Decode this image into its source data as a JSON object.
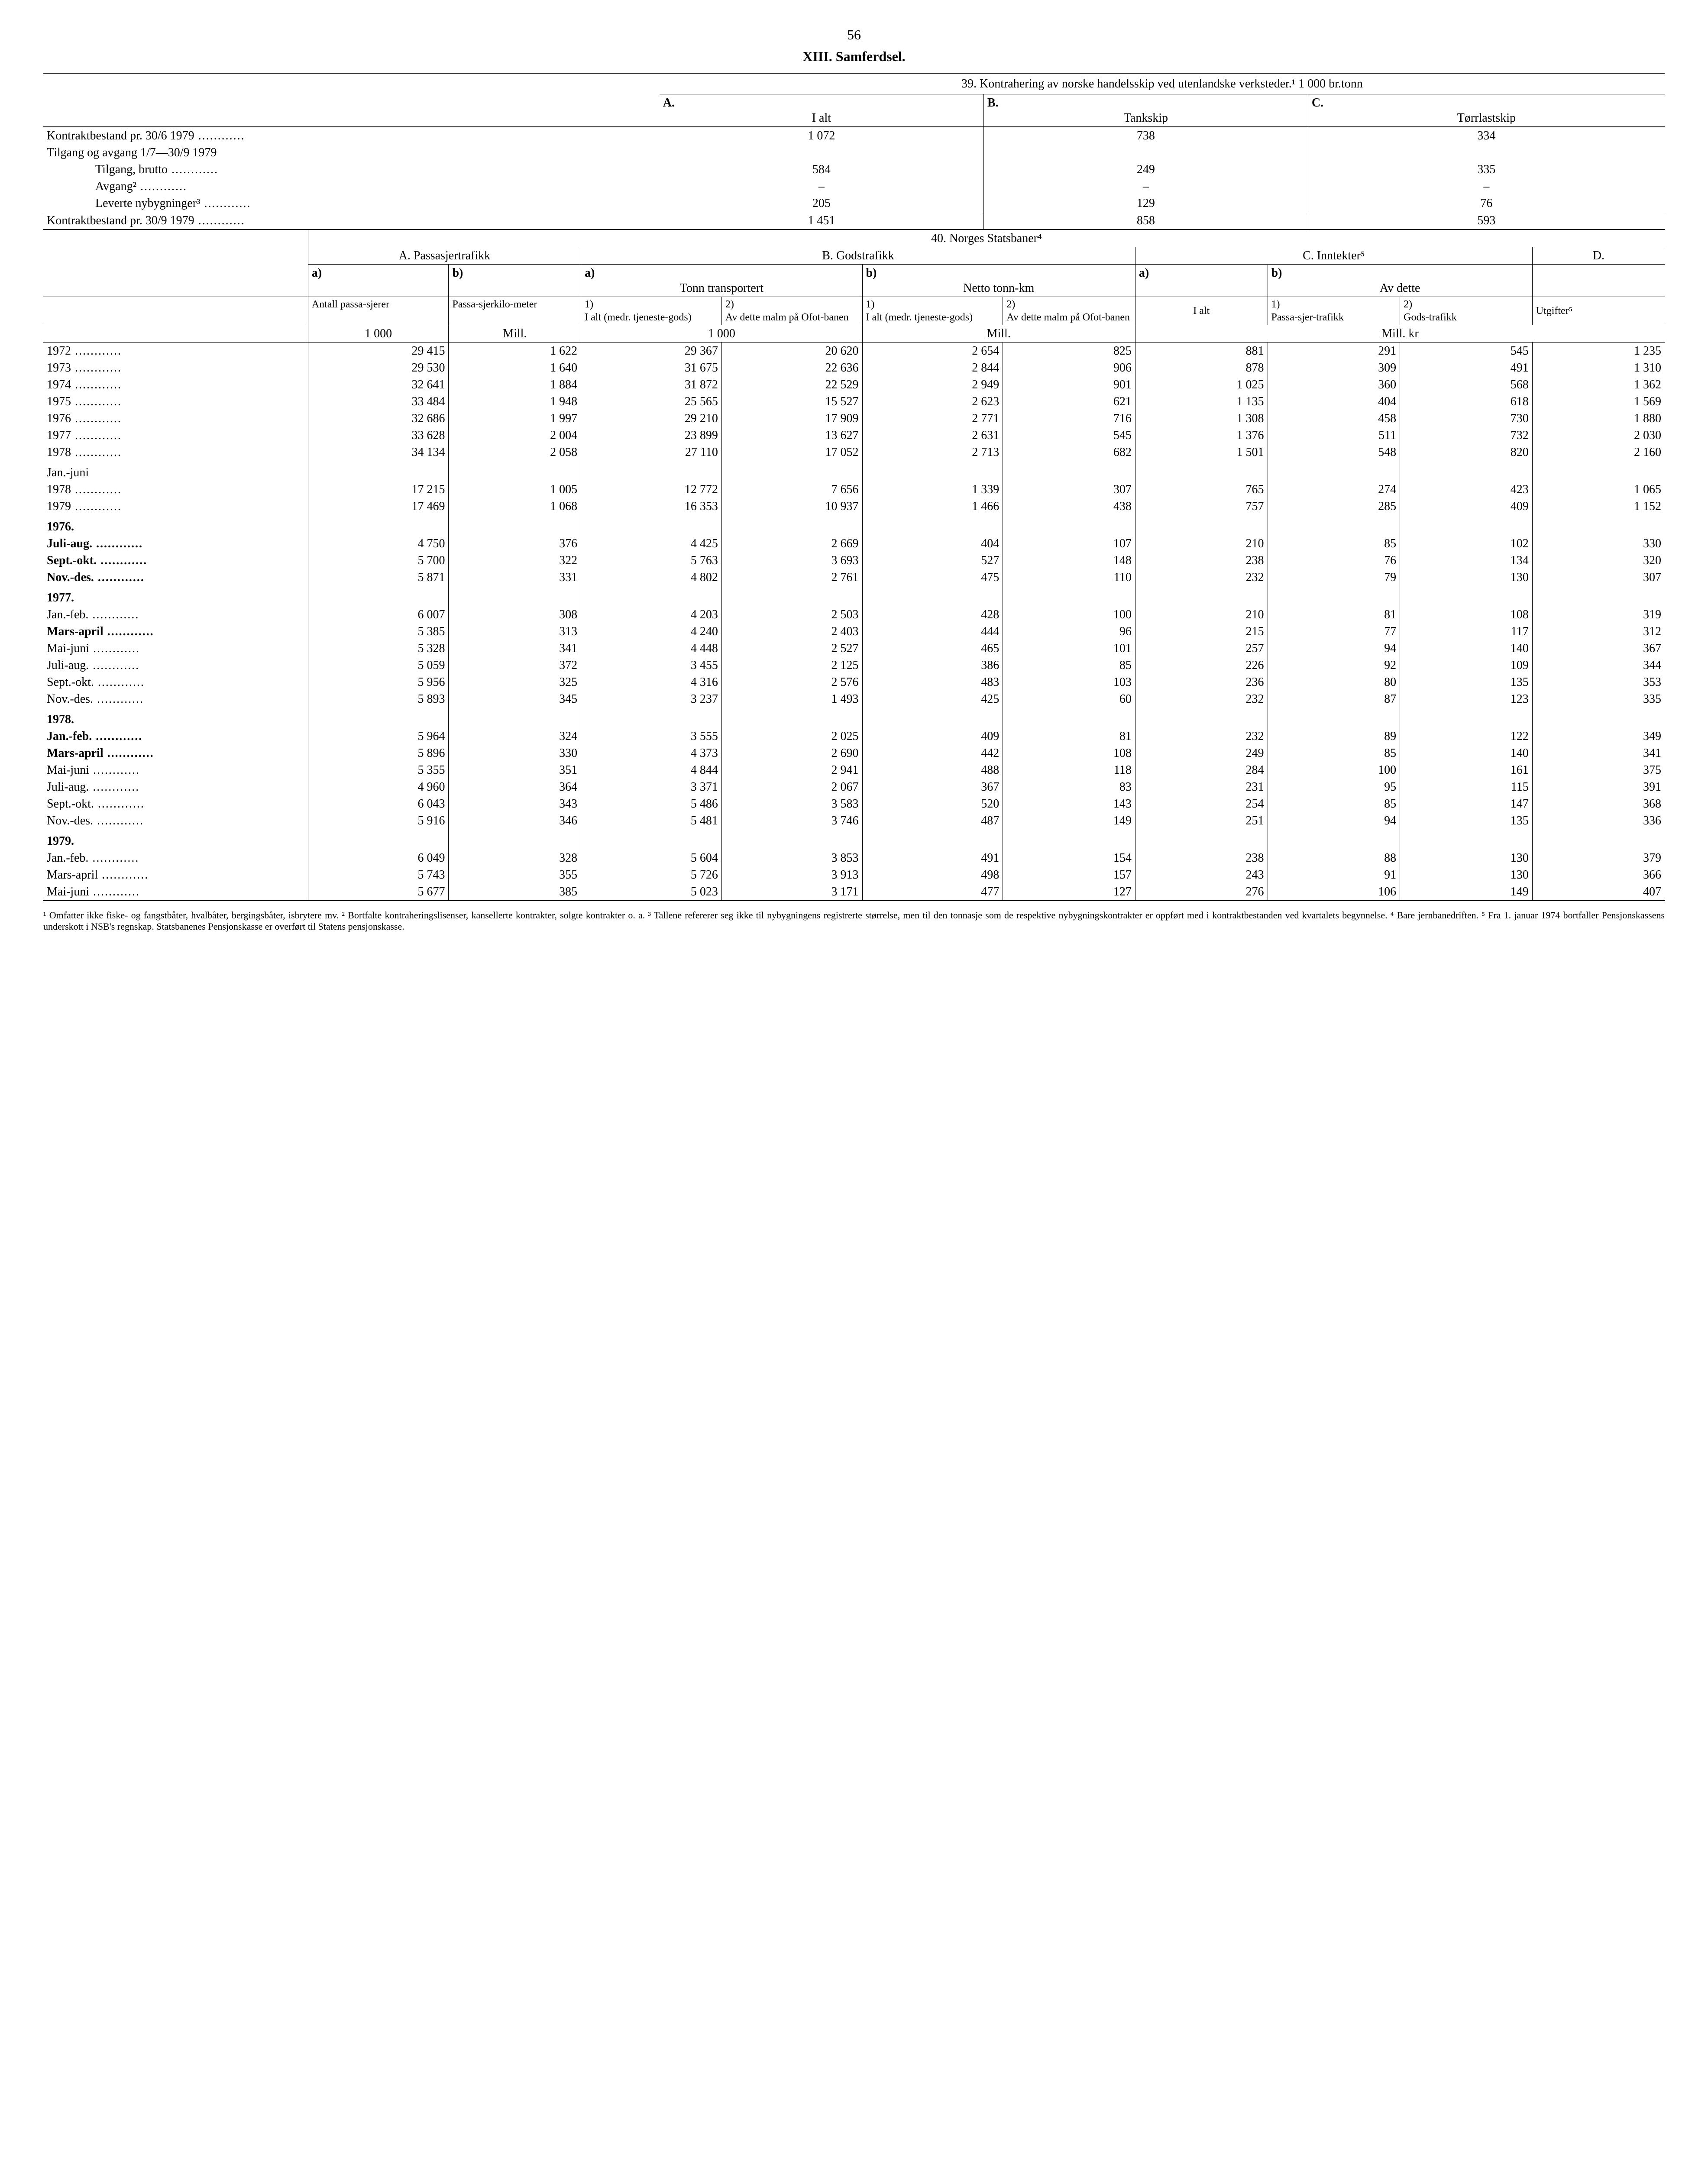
{
  "page_number": "56",
  "section_title": "XIII. Samferdsel.",
  "table39": {
    "title": "39. Kontrahering av norske handelsskip ved utenlandske verksteder.¹ 1 000 br.tonn",
    "col_labels": {
      "a": "A.",
      "a_sub": "I alt",
      "b": "B.",
      "b_sub": "Tankskip",
      "c": "C.",
      "c_sub": "Tørrlastskip"
    },
    "rows": [
      {
        "label": "Kontraktbestand pr. 30/6 1979",
        "indent": 0,
        "a": "1 072",
        "b": "738",
        "c": "334"
      },
      {
        "label": "Tilgang og avgang 1/7—30/9 1979",
        "indent": 0,
        "a": "",
        "b": "",
        "c": ""
      },
      {
        "label": "Tilgang, brutto",
        "indent": 2,
        "a": "584",
        "b": "249",
        "c": "335"
      },
      {
        "label": "Avgang²",
        "indent": 2,
        "a": "–",
        "b": "–",
        "c": "–"
      },
      {
        "label": "Leverte nybygninger³",
        "indent": 2,
        "a": "205",
        "b": "129",
        "c": "76"
      },
      {
        "label": "Kontraktbestand pr. 30/9 1979",
        "indent": 0,
        "a": "1 451",
        "b": "858",
        "c": "593"
      }
    ]
  },
  "table40": {
    "title": "40. Norges Statsbaner⁴",
    "group_headers": {
      "A": "A. Passasjertrafikk",
      "B": "B. Godstrafikk",
      "C": "C. Inntekter⁵",
      "D": "D."
    },
    "sub_headers": {
      "Aa": "a)",
      "Ab": "b)",
      "Ba": "a)",
      "Ba_sub": "Tonn transportert",
      "Bb": "b)",
      "Bb_sub": "Netto tonn-km",
      "Ca": "a)",
      "Cb": "b)",
      "Cb_sub": "Av dette"
    },
    "leaf_headers": {
      "Aa": "Antall passa-sjerer",
      "Ab": "Passa-sjerkilo-meter",
      "Ba1_top": "1)",
      "Ba1": "I alt (medr. tjeneste-gods)",
      "Ba2_top": "2)",
      "Ba2": "Av dette malm på Ofot-banen",
      "Bb1_top": "1)",
      "Bb1": "I alt (medr. tjeneste-gods)",
      "Bb2_top": "2)",
      "Bb2": "Av dette malm på Ofot-banen",
      "Ca": "I alt",
      "Cb1_top": "1)",
      "Cb1": "Passa-sjer-trafikk",
      "Cb2_top": "2)",
      "Cb2": "Gods-trafikk",
      "D": "Utgifter⁵"
    },
    "unit_row": {
      "Aa": "1 000",
      "Ab": "Mill.",
      "B_tonn": "1 000",
      "B_km": "Mill.",
      "C": "Mill. kr"
    },
    "blocks": [
      {
        "heading": "",
        "rows": [
          {
            "label": "1972",
            "bold": false,
            "v": [
              "29 415",
              "1 622",
              "29 367",
              "20 620",
              "2 654",
              "825",
              "881",
              "291",
              "545",
              "1 235"
            ]
          },
          {
            "label": "1973",
            "bold": false,
            "v": [
              "29 530",
              "1 640",
              "31 675",
              "22 636",
              "2 844",
              "906",
              "878",
              "309",
              "491",
              "1 310"
            ]
          },
          {
            "label": "1974",
            "bold": false,
            "v": [
              "32 641",
              "1 884",
              "31 872",
              "22 529",
              "2 949",
              "901",
              "1 025",
              "360",
              "568",
              "1 362"
            ]
          },
          {
            "label": "1975",
            "bold": false,
            "v": [
              "33 484",
              "1 948",
              "25 565",
              "15 527",
              "2 623",
              "621",
              "1 135",
              "404",
              "618",
              "1 569"
            ]
          },
          {
            "label": "1976",
            "bold": false,
            "v": [
              "32 686",
              "1 997",
              "29 210",
              "17 909",
              "2 771",
              "716",
              "1 308",
              "458",
              "730",
              "1 880"
            ]
          },
          {
            "label": "1977",
            "bold": false,
            "v": [
              "33 628",
              "2 004",
              "23 899",
              "13 627",
              "2 631",
              "545",
              "1 376",
              "511",
              "732",
              "2 030"
            ]
          },
          {
            "label": "1978",
            "bold": false,
            "v": [
              "34 134",
              "2 058",
              "27 110",
              "17 052",
              "2 713",
              "682",
              "1 501",
              "548",
              "820",
              "2 160"
            ]
          }
        ]
      },
      {
        "heading": "Jan.-juni",
        "rows": [
          {
            "label": "1978",
            "bold": false,
            "v": [
              "17 215",
              "1 005",
              "12 772",
              "7 656",
              "1 339",
              "307",
              "765",
              "274",
              "423",
              "1 065"
            ]
          },
          {
            "label": "1979",
            "bold": false,
            "v": [
              "17 469",
              "1 068",
              "16 353",
              "10 937",
              "1 466",
              "438",
              "757",
              "285",
              "409",
              "1 152"
            ]
          }
        ]
      },
      {
        "heading": "1976.",
        "heading_bold": true,
        "rows": [
          {
            "label": "Juli-aug.",
            "bold": true,
            "v": [
              "4 750",
              "376",
              "4 425",
              "2 669",
              "404",
              "107",
              "210",
              "85",
              "102",
              "330"
            ]
          },
          {
            "label": "Sept.-okt.",
            "bold": true,
            "v": [
              "5 700",
              "322",
              "5 763",
              "3 693",
              "527",
              "148",
              "238",
              "76",
              "134",
              "320"
            ]
          },
          {
            "label": "Nov.-des.",
            "bold": true,
            "v": [
              "5 871",
              "331",
              "4 802",
              "2 761",
              "475",
              "110",
              "232",
              "79",
              "130",
              "307"
            ]
          }
        ]
      },
      {
        "heading": "1977.",
        "heading_bold": true,
        "rows": [
          {
            "label": "Jan.-feb.",
            "bold": false,
            "v": [
              "6 007",
              "308",
              "4 203",
              "2 503",
              "428",
              "100",
              "210",
              "81",
              "108",
              "319"
            ]
          },
          {
            "label": "Mars-april",
            "bold": true,
            "v": [
              "5 385",
              "313",
              "4 240",
              "2 403",
              "444",
              "96",
              "215",
              "77",
              "117",
              "312"
            ]
          },
          {
            "label": "Mai-juni",
            "bold": false,
            "v": [
              "5 328",
              "341",
              "4 448",
              "2 527",
              "465",
              "101",
              "257",
              "94",
              "140",
              "367"
            ]
          },
          {
            "label": "Juli-aug.",
            "bold": false,
            "v": [
              "5 059",
              "372",
              "3 455",
              "2 125",
              "386",
              "85",
              "226",
              "92",
              "109",
              "344"
            ]
          },
          {
            "label": "Sept.-okt.",
            "bold": false,
            "v": [
              "5 956",
              "325",
              "4 316",
              "2 576",
              "483",
              "103",
              "236",
              "80",
              "135",
              "353"
            ]
          },
          {
            "label": "Nov.-des.",
            "bold": false,
            "v": [
              "5 893",
              "345",
              "3 237",
              "1 493",
              "425",
              "60",
              "232",
              "87",
              "123",
              "335"
            ]
          }
        ]
      },
      {
        "heading": "1978.",
        "heading_bold": true,
        "rows": [
          {
            "label": "Jan.-feb.",
            "bold": true,
            "v": [
              "5 964",
              "324",
              "3 555",
              "2 025",
              "409",
              "81",
              "232",
              "89",
              "122",
              "349"
            ]
          },
          {
            "label": "Mars-april",
            "bold": true,
            "v": [
              "5 896",
              "330",
              "4 373",
              "2 690",
              "442",
              "108",
              "249",
              "85",
              "140",
              "341"
            ]
          },
          {
            "label": "Mai-juni",
            "bold": false,
            "v": [
              "5 355",
              "351",
              "4 844",
              "2 941",
              "488",
              "118",
              "284",
              "100",
              "161",
              "375"
            ]
          },
          {
            "label": "Juli-aug.",
            "bold": false,
            "v": [
              "4 960",
              "364",
              "3 371",
              "2 067",
              "367",
              "83",
              "231",
              "95",
              "115",
              "391"
            ]
          },
          {
            "label": "Sept.-okt.",
            "bold": false,
            "v": [
              "6 043",
              "343",
              "5 486",
              "3 583",
              "520",
              "143",
              "254",
              "85",
              "147",
              "368"
            ]
          },
          {
            "label": "Nov.-des.",
            "bold": false,
            "v": [
              "5 916",
              "346",
              "5 481",
              "3 746",
              "487",
              "149",
              "251",
              "94",
              "135",
              "336"
            ]
          }
        ]
      },
      {
        "heading": "1979.",
        "heading_bold": true,
        "rows": [
          {
            "label": "Jan.-feb.",
            "bold": false,
            "v": [
              "6 049",
              "328",
              "5 604",
              "3 853",
              "491",
              "154",
              "238",
              "88",
              "130",
              "379"
            ]
          },
          {
            "label": "Mars-april",
            "bold": false,
            "v": [
              "5 743",
              "355",
              "5 726",
              "3 913",
              "498",
              "157",
              "243",
              "91",
              "130",
              "366"
            ]
          },
          {
            "label": "Mai-juni",
            "bold": false,
            "v": [
              "5 677",
              "385",
              "5 023",
              "3 171",
              "477",
              "127",
              "276",
              "106",
              "149",
              "407"
            ]
          }
        ]
      }
    ]
  },
  "footnote": "¹ Omfatter ikke fiske- og fangstbåter, hvalbåter, bergingsbåter, isbrytere mv.  ² Bortfalte kontraheringslisenser, kansellerte kontrakter, solgte kontrakter o. a.  ³ Tallene refererer seg ikke til nybygningens registrerte størrelse, men til den tonnasje som de respektive nybygningskontrakter er oppført med i kontraktbestanden ved kvartalets begynnelse.  ⁴ Bare jernbanedriften.  ⁵ Fra 1. januar 1974 bortfaller Pensjonskassens underskott i NSB's regnskap. Statsbanenes Pensjonskasse er overført til Statens pensjonskasse."
}
